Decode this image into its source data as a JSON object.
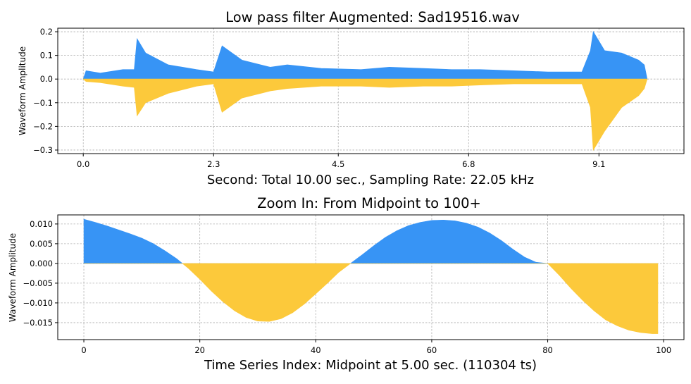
{
  "chart_data": [
    {
      "type": "area",
      "title": "Low pass filter Augmented: Sad19516.wav",
      "xlabel": "Second: Total 10.00 sec., Sampling Rate: 22.05 kHz",
      "ylabel": "Waveform Amplitude",
      "xlim": [
        -0.45,
        10.6
      ],
      "ylim": [
        -0.315,
        0.215
      ],
      "xticks": [
        0.0,
        2.3,
        4.5,
        6.8,
        9.1
      ],
      "xtick_labels": [
        "0.0",
        "2.3",
        "4.5",
        "6.8",
        "9.1"
      ],
      "yticks": [
        -0.3,
        -0.2,
        -0.1,
        0.0,
        0.1,
        0.2
      ],
      "ytick_labels": [
        "−0.3",
        "−0.2",
        "−0.1",
        "0.0",
        "0.1",
        "0.2"
      ],
      "grid": true,
      "envelope_points": [
        {
          "x": 0.0,
          "pos": 0.0,
          "neg": 0.0
        },
        {
          "x": 0.05,
          "pos": 0.035,
          "neg": -0.01
        },
        {
          "x": 0.3,
          "pos": 0.025,
          "neg": -0.015
        },
        {
          "x": 0.7,
          "pos": 0.04,
          "neg": -0.03
        },
        {
          "x": 0.9,
          "pos": 0.04,
          "neg": -0.035
        },
        {
          "x": 0.95,
          "pos": 0.17,
          "neg": -0.155
        },
        {
          "x": 1.1,
          "pos": 0.11,
          "neg": -0.1
        },
        {
          "x": 1.5,
          "pos": 0.06,
          "neg": -0.06
        },
        {
          "x": 2.0,
          "pos": 0.04,
          "neg": -0.03
        },
        {
          "x": 2.3,
          "pos": 0.03,
          "neg": -0.02
        },
        {
          "x": 2.45,
          "pos": 0.14,
          "neg": -0.14
        },
        {
          "x": 2.8,
          "pos": 0.08,
          "neg": -0.08
        },
        {
          "x": 3.3,
          "pos": 0.05,
          "neg": -0.05
        },
        {
          "x": 3.6,
          "pos": 0.06,
          "neg": -0.04
        },
        {
          "x": 4.2,
          "pos": 0.045,
          "neg": -0.03
        },
        {
          "x": 4.9,
          "pos": 0.04,
          "neg": -0.03
        },
        {
          "x": 5.4,
          "pos": 0.05,
          "neg": -0.035
        },
        {
          "x": 6.0,
          "pos": 0.045,
          "neg": -0.03
        },
        {
          "x": 6.5,
          "pos": 0.04,
          "neg": -0.03
        },
        {
          "x": 7.0,
          "pos": 0.04,
          "neg": -0.025
        },
        {
          "x": 7.6,
          "pos": 0.035,
          "neg": -0.02
        },
        {
          "x": 8.2,
          "pos": 0.03,
          "neg": -0.02
        },
        {
          "x": 8.8,
          "pos": 0.03,
          "neg": -0.02
        },
        {
          "x": 8.95,
          "pos": 0.12,
          "neg": -0.12
        },
        {
          "x": 9.0,
          "pos": 0.2,
          "neg": -0.3
        },
        {
          "x": 9.2,
          "pos": 0.12,
          "neg": -0.22
        },
        {
          "x": 9.5,
          "pos": 0.11,
          "neg": -0.12
        },
        {
          "x": 9.8,
          "pos": 0.08,
          "neg": -0.07
        },
        {
          "x": 9.9,
          "pos": 0.06,
          "neg": -0.04
        },
        {
          "x": 9.95,
          "pos": 0.0,
          "neg": 0.0
        }
      ]
    },
    {
      "type": "area",
      "title": "Zoom In: From Midpoint to 100+",
      "xlabel": "Time Series Index: Midpoint at 5.00 sec. (110304 ts)",
      "ylabel": "Waveform Amplitude",
      "xlim": [
        -4.5,
        103.5
      ],
      "ylim": [
        -0.0193,
        0.0123
      ],
      "xticks": [
        0,
        20,
        40,
        60,
        80,
        100
      ],
      "xtick_labels": [
        "0",
        "20",
        "40",
        "60",
        "80",
        "100"
      ],
      "yticks": [
        -0.015,
        -0.01,
        -0.005,
        0.0,
        0.005,
        0.01
      ],
      "ytick_labels": [
        "−0.015",
        "−0.010",
        "−0.005",
        "0.000",
        "0.005",
        "0.010"
      ],
      "grid": true,
      "x": [
        0,
        2,
        4,
        6,
        8,
        10,
        12,
        14,
        16,
        17,
        18,
        20,
        22,
        24,
        26,
        28,
        30,
        32,
        34,
        36,
        38,
        40,
        42,
        44,
        46,
        48,
        50,
        52,
        54,
        56,
        58,
        60,
        62,
        64,
        66,
        68,
        70,
        72,
        74,
        76,
        78,
        80,
        82,
        84,
        86,
        88,
        90,
        92,
        94,
        96,
        98,
        99
      ],
      "y": [
        0.0112,
        0.0104,
        0.0095,
        0.0085,
        0.0075,
        0.0064,
        0.005,
        0.0032,
        0.0012,
        0.0,
        -0.0012,
        -0.004,
        -0.007,
        -0.0097,
        -0.012,
        -0.0137,
        -0.0146,
        -0.0147,
        -0.014,
        -0.0125,
        -0.0103,
        -0.0077,
        -0.005,
        -0.0022,
        0.0,
        0.0022,
        0.0045,
        0.0066,
        0.0083,
        0.0096,
        0.0104,
        0.0109,
        0.011,
        0.0108,
        0.0102,
        0.0092,
        0.0077,
        0.0058,
        0.0036,
        0.0016,
        0.0003,
        0.0,
        -0.003,
        -0.0063,
        -0.0093,
        -0.012,
        -0.0143,
        -0.0158,
        -0.0169,
        -0.0175,
        -0.0178,
        -0.0178
      ]
    }
  ],
  "colors": {
    "positive": "#3794f5",
    "negative": "#fcc93b",
    "grid": "#b0b0b0",
    "frame": "#000000"
  }
}
